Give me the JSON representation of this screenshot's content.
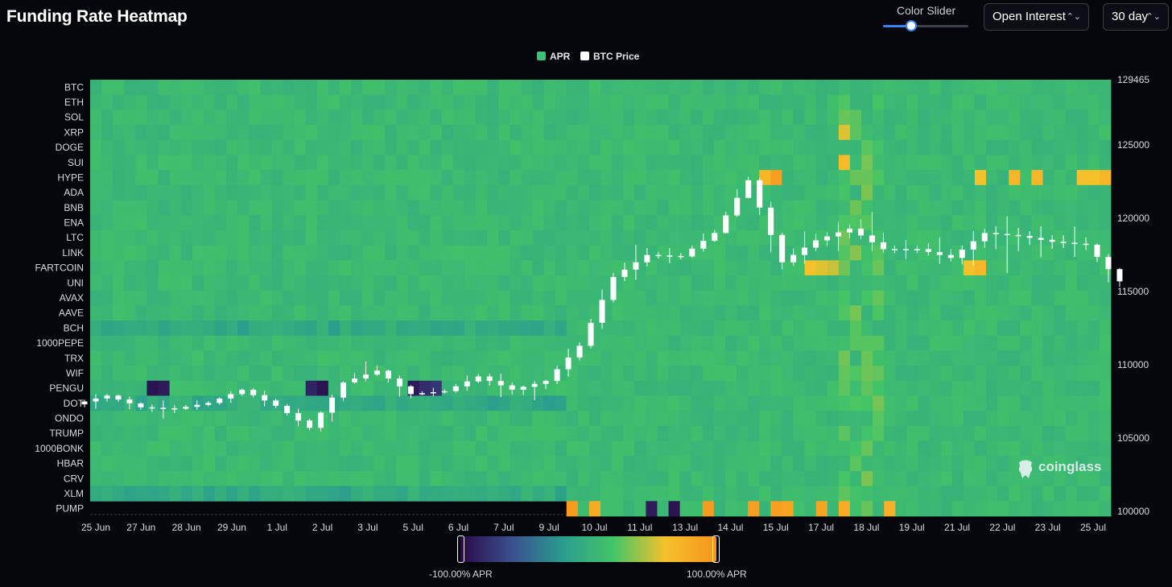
{
  "header": {
    "title": "Funding Rate Heatmap",
    "slider_label": "Color Slider",
    "slider_value": 0.33,
    "metric_select": "Open Interest",
    "period_select": "30 day"
  },
  "legend": [
    {
      "label": "APR",
      "color": "#3ec07a"
    },
    {
      "label": "BTC Price",
      "color": "#ffffff"
    }
  ],
  "colorbar": {
    "min_label": "-100.00% APR",
    "max_label": "100.00% APR",
    "stops": [
      "#2a0a48",
      "#3b4f8f",
      "#2a9d8f",
      "#43c566",
      "#f5c12a",
      "#f7941d"
    ]
  },
  "watermark": "coinglass",
  "chart_data": {
    "type": "heatmap",
    "y_categories": [
      "BTC",
      "ETH",
      "SOL",
      "XRP",
      "DOGE",
      "SUI",
      "HYPE",
      "ADA",
      "BNB",
      "ENA",
      "LTC",
      "LINK",
      "FARTCOIN",
      "UNI",
      "AVAX",
      "AAVE",
      "BCH",
      "1000PEPE",
      "TRX",
      "WIF",
      "PENGU",
      "DOT",
      "ONDO",
      "TRUMP",
      "1000BONK",
      "HBAR",
      "CRV",
      "XLM",
      "PUMP"
    ],
    "x_tick_labels": [
      "25 Jun",
      "27 Jun",
      "28 Jun",
      "29 Jun",
      "1 Jul",
      "2 Jul",
      "3 Jul",
      "5 Jul",
      "6 Jul",
      "7 Jul",
      "9 Jul",
      "10 Jul",
      "11 Jul",
      "13 Jul",
      "14 Jul",
      "15 Jul",
      "17 Jul",
      "18 Jul",
      "19 Jul",
      "21 Jul",
      "22 Jul",
      "23 Jul",
      "25 Jul"
    ],
    "y2_tick_labels": [
      "129465",
      "125000",
      "120000",
      "115000",
      "110000",
      "105000",
      "100000"
    ],
    "y2_range": [
      100000,
      129465
    ],
    "color_range": [
      -100,
      100
    ],
    "hot_cells": [
      {
        "row": "HYPE",
        "apr": [
          70,
          90,
          0,
          0,
          0,
          0,
          60,
          0,
          70,
          0,
          0,
          0,
          50,
          0,
          0,
          0,
          0,
          70,
          0,
          0,
          60,
          0,
          0,
          0,
          0,
          0,
          0,
          0,
          0,
          0,
          0,
          0,
          60,
          70
        ]
      },
      {
        "row": "XRP",
        "apr": [
          55
        ]
      },
      {
        "row": "SUI",
        "apr": [
          65
        ]
      },
      {
        "row": "FARTCOIN",
        "apr": [
          60,
          55,
          50,
          60,
          70
        ]
      },
      {
        "row": "PENGU",
        "apr": [
          -95,
          -90,
          -85,
          -95,
          -90,
          -80,
          -75
        ]
      },
      {
        "row": "PUMP",
        "apr": [
          95,
          80,
          -90,
          -95,
          95,
          90,
          90,
          85,
          85,
          80,
          75
        ]
      }
    ],
    "btc_price": [
      {
        "date": "25 Jun",
        "o": 107300,
        "h": 108200,
        "l": 106800,
        "c": 107900
      },
      {
        "date": "26 Jun",
        "o": 107900,
        "h": 108100,
        "l": 106700,
        "c": 107100
      },
      {
        "date": "27 Jun",
        "o": 107100,
        "h": 107600,
        "l": 106300,
        "c": 107000
      },
      {
        "date": "28 Jun",
        "o": 107000,
        "h": 107700,
        "l": 106800,
        "c": 107400
      },
      {
        "date": "29 Jun",
        "o": 107400,
        "h": 108500,
        "l": 107100,
        "c": 108300
      },
      {
        "date": "30 Jun",
        "o": 108300,
        "h": 108600,
        "l": 106800,
        "c": 107200
      },
      {
        "date": "1 Jul",
        "o": 107200,
        "h": 107500,
        "l": 105300,
        "c": 105700
      },
      {
        "date": "2 Jul",
        "o": 105700,
        "h": 109000,
        "l": 105100,
        "c": 108800
      },
      {
        "date": "3 Jul",
        "o": 108800,
        "h": 110500,
        "l": 108600,
        "c": 109600
      },
      {
        "date": "4 Jul",
        "o": 109600,
        "h": 109800,
        "l": 107300,
        "c": 108000
      },
      {
        "date": "5 Jul",
        "o": 108000,
        "h": 108500,
        "l": 107800,
        "c": 108200
      },
      {
        "date": "6 Jul",
        "o": 108200,
        "h": 109600,
        "l": 107900,
        "c": 109200
      },
      {
        "date": "7 Jul",
        "o": 109200,
        "h": 109700,
        "l": 107500,
        "c": 108300
      },
      {
        "date": "8 Jul",
        "o": 108300,
        "h": 109100,
        "l": 107400,
        "c": 108900
      },
      {
        "date": "9 Jul",
        "o": 108900,
        "h": 111900,
        "l": 108400,
        "c": 111300
      },
      {
        "date": "10 Jul",
        "o": 111300,
        "h": 116700,
        "l": 110900,
        "c": 116000
      },
      {
        "date": "11 Jul",
        "o": 116000,
        "h": 118700,
        "l": 115300,
        "c": 117500
      },
      {
        "date": "12 Jul",
        "o": 117500,
        "h": 118000,
        "l": 116900,
        "c": 117400
      },
      {
        "date": "13 Jul",
        "o": 117400,
        "h": 119500,
        "l": 117200,
        "c": 119000
      },
      {
        "date": "14 Jul",
        "o": 119000,
        "h": 123200,
        "l": 118900,
        "c": 122600
      },
      {
        "date": "15 Jul",
        "o": 122600,
        "h": 123000,
        "l": 115800,
        "c": 117000
      },
      {
        "date": "16 Jul",
        "o": 117000,
        "h": 119600,
        "l": 116400,
        "c": 118500
      },
      {
        "date": "17 Jul",
        "o": 118500,
        "h": 120000,
        "l": 117500,
        "c": 119300
      },
      {
        "date": "18 Jul",
        "o": 119300,
        "h": 120900,
        "l": 117300,
        "c": 117900
      },
      {
        "date": "19 Jul",
        "o": 117900,
        "h": 118500,
        "l": 117200,
        "c": 117900
      },
      {
        "date": "20 Jul",
        "o": 117900,
        "h": 118900,
        "l": 116700,
        "c": 117300
      },
      {
        "date": "21 Jul",
        "o": 117300,
        "h": 119700,
        "l": 116200,
        "c": 119000
      },
      {
        "date": "22 Jul",
        "o": 119000,
        "h": 120200,
        "l": 116200,
        "c": 118800
      },
      {
        "date": "23 Jul",
        "o": 118800,
        "h": 119600,
        "l": 117200,
        "c": 118400
      },
      {
        "date": "24 Jul",
        "o": 118400,
        "h": 119500,
        "l": 117300,
        "c": 118200
      },
      {
        "date": "25 Jul",
        "o": 118200,
        "h": 118400,
        "l": 114800,
        "c": 115700
      }
    ]
  }
}
